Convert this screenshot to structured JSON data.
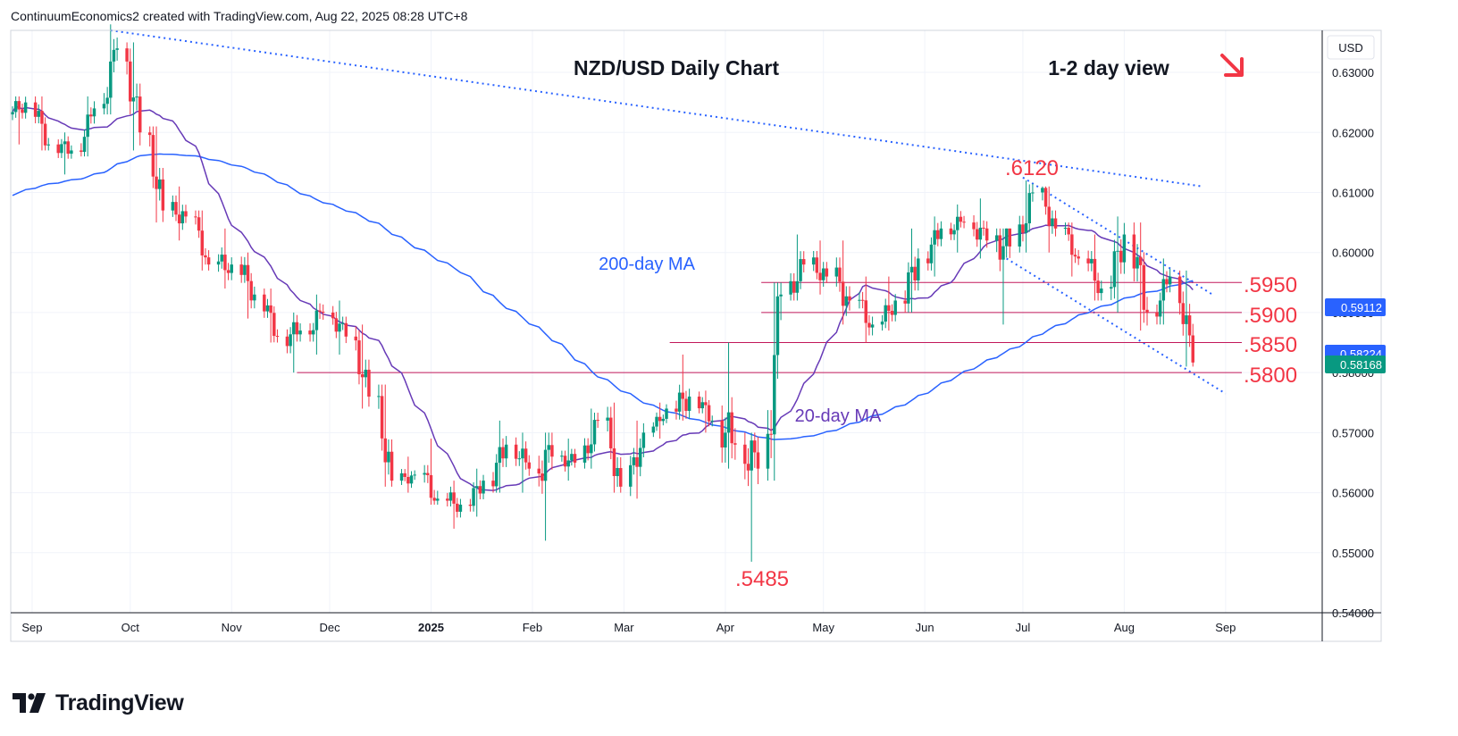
{
  "header": {
    "text": "ContinuumEconomics2 created with TradingView.com, Aug 22, 2025 08:28 UTC+8"
  },
  "brand": {
    "name": "TradingView",
    "icon": "tradingview-logo-icon"
  },
  "colors": {
    "up": "#089981",
    "down": "#f23645",
    "ma200": "#2962ff",
    "ma20": "#673ab7",
    "level_text": "#f23645",
    "level_line": "#c2185b",
    "trend": "#2962ff",
    "price_badge": "#089981",
    "ma_badge": "#2962ff",
    "close_badge": "#2962ff"
  },
  "annotations": {
    "title": "NZD/USD Daily Chart",
    "view": "1-2 day view",
    "arrow_icon": "arrow-down-right-icon",
    "high_label": ".6120",
    "low_label": ".5485",
    "ma200_label": "200-day MA",
    "ma20_label": "20-day MA",
    "levels": [
      ".5950",
      ".5900",
      ".5850",
      ".5800"
    ]
  },
  "price_axis": {
    "currency": "USD",
    "ticks": [
      "0.63000",
      "0.62000",
      "0.61000",
      "0.60000",
      "0.59000",
      "0.58000",
      "0.57000",
      "0.56000",
      "0.55000",
      "0.54000"
    ],
    "badges": [
      "0.59112",
      "0.58224",
      "0.58168"
    ]
  },
  "time_axis": {
    "labels": [
      "Sep",
      "Oct",
      "Nov",
      "Dec",
      "2025",
      "Feb",
      "Mar",
      "Apr",
      "May",
      "Jun",
      "Jul",
      "Aug",
      "Sep"
    ]
  },
  "chart_data": {
    "type": "candlestick",
    "title": "NZD/USD Daily Chart",
    "ylim": [
      0.54,
      0.637
    ],
    "x_range": [
      "2024-08-26",
      "2025-09-30"
    ],
    "levels": [
      0.595,
      0.59,
      0.585,
      0.58
    ],
    "key_points": {
      "high": 0.612,
      "low": 0.5485
    },
    "last_close": 0.58168,
    "ma20_last": 0.59112,
    "ma200_last": 0.58224,
    "trendlines": [
      {
        "from": [
          "2024-09-25",
          0.637
        ],
        "to": [
          "2025-08-25",
          0.611
        ]
      },
      {
        "from": [
          "2025-07-01",
          0.6125
        ],
        "to": [
          "2025-08-28",
          0.593
        ]
      },
      {
        "from": [
          "2025-06-26",
          0.599
        ],
        "to": [
          "2025-09-01",
          0.5765
        ]
      }
    ],
    "ohlc_weekly": [
      [
        "2024-08-26",
        0.623,
        0.626,
        0.618,
        0.625
      ],
      [
        "2024-09-02",
        0.625,
        0.626,
        0.617,
        0.618
      ],
      [
        "2024-09-09",
        0.618,
        0.62,
        0.613,
        0.617
      ],
      [
        "2024-09-16",
        0.617,
        0.626,
        0.616,
        0.624
      ],
      [
        "2024-09-23",
        0.624,
        0.638,
        0.623,
        0.634
      ],
      [
        "2024-09-30",
        0.634,
        0.635,
        0.617,
        0.62
      ],
      [
        "2024-10-07",
        0.62,
        0.621,
        0.605,
        0.607
      ],
      [
        "2024-10-14",
        0.607,
        0.611,
        0.602,
        0.606
      ],
      [
        "2024-10-21",
        0.606,
        0.607,
        0.597,
        0.598
      ],
      [
        "2024-10-28",
        0.598,
        0.604,
        0.594,
        0.598
      ],
      [
        "2024-11-04",
        0.598,
        0.6,
        0.589,
        0.593
      ],
      [
        "2024-11-11",
        0.593,
        0.594,
        0.585,
        0.586
      ],
      [
        "2024-11-18",
        0.586,
        0.59,
        0.58,
        0.587
      ],
      [
        "2024-11-25",
        0.587,
        0.593,
        0.583,
        0.59
      ],
      [
        "2024-12-02",
        0.59,
        0.592,
        0.583,
        0.586
      ],
      [
        "2024-12-09",
        0.586,
        0.588,
        0.574,
        0.576
      ],
      [
        "2024-12-16",
        0.576,
        0.578,
        0.561,
        0.562
      ],
      [
        "2024-12-23",
        0.562,
        0.566,
        0.56,
        0.563
      ],
      [
        "2024-12-30",
        0.563,
        0.569,
        0.558,
        0.559
      ],
      [
        "2025-01-06",
        0.559,
        0.562,
        0.554,
        0.558
      ],
      [
        "2025-01-13",
        0.558,
        0.564,
        0.556,
        0.562
      ],
      [
        "2025-01-20",
        0.562,
        0.572,
        0.56,
        0.568
      ],
      [
        "2025-01-27",
        0.568,
        0.57,
        0.56,
        0.564
      ],
      [
        "2025-02-03",
        0.564,
        0.57,
        0.552,
        0.566
      ],
      [
        "2025-02-10",
        0.566,
        0.569,
        0.562,
        0.565
      ],
      [
        "2025-02-17",
        0.565,
        0.574,
        0.564,
        0.572
      ],
      [
        "2025-02-24",
        0.572,
        0.575,
        0.56,
        0.561
      ],
      [
        "2025-03-03",
        0.561,
        0.572,
        0.559,
        0.57
      ],
      [
        "2025-03-10",
        0.57,
        0.575,
        0.569,
        0.574
      ],
      [
        "2025-03-17",
        0.574,
        0.583,
        0.572,
        0.576
      ],
      [
        "2025-03-24",
        0.576,
        0.577,
        0.57,
        0.572
      ],
      [
        "2025-03-31",
        0.572,
        0.585,
        0.564,
        0.568
      ],
      [
        "2025-04-07",
        0.568,
        0.57,
        0.5485,
        0.564
      ],
      [
        "2025-04-14",
        0.564,
        0.595,
        0.562,
        0.593
      ],
      [
        "2025-04-21",
        0.593,
        0.603,
        0.592,
        0.598
      ],
      [
        "2025-04-28",
        0.598,
        0.602,
        0.593,
        0.596
      ],
      [
        "2025-05-05",
        0.596,
        0.602,
        0.588,
        0.592
      ],
      [
        "2025-05-12",
        0.592,
        0.596,
        0.585,
        0.588
      ],
      [
        "2025-05-19",
        0.588,
        0.596,
        0.587,
        0.592
      ],
      [
        "2025-05-26",
        0.592,
        0.604,
        0.59,
        0.599
      ],
      [
        "2025-06-02",
        0.599,
        0.606,
        0.596,
        0.604
      ],
      [
        "2025-06-09",
        0.604,
        0.608,
        0.6,
        0.605
      ],
      [
        "2025-06-16",
        0.605,
        0.609,
        0.599,
        0.602
      ],
      [
        "2025-06-23",
        0.602,
        0.604,
        0.588,
        0.601
      ],
      [
        "2025-06-30",
        0.601,
        0.612,
        0.6,
        0.61
      ],
      [
        "2025-07-07",
        0.61,
        0.611,
        0.6,
        0.604
      ],
      [
        "2025-07-14",
        0.604,
        0.605,
        0.596,
        0.599
      ],
      [
        "2025-07-21",
        0.599,
        0.603,
        0.592,
        0.594
      ],
      [
        "2025-07-28",
        0.594,
        0.606,
        0.59,
        0.603
      ],
      [
        "2025-08-04",
        0.603,
        0.605,
        0.587,
        0.59
      ],
      [
        "2025-08-11",
        0.59,
        0.599,
        0.588,
        0.596
      ],
      [
        "2025-08-18",
        0.596,
        0.597,
        0.581,
        0.58168
      ]
    ]
  }
}
